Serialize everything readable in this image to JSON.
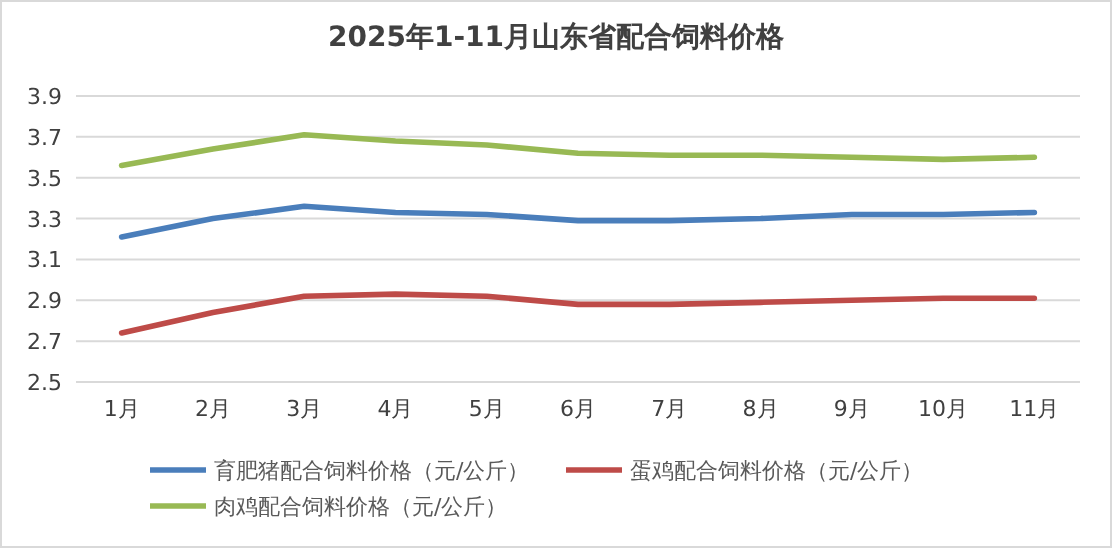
{
  "chart_data": {
    "type": "line",
    "title": "2025年1-11月山东省配合饲料价格",
    "categories": [
      "1月",
      "2月",
      "3月",
      "4月",
      "5月",
      "6月",
      "7月",
      "8月",
      "9月",
      "10月",
      "11月"
    ],
    "series": [
      {
        "name": "育肥猪配合饲料价格（元/公斤）",
        "color": "#4a7ebb",
        "values": [
          3.21,
          3.3,
          3.36,
          3.33,
          3.32,
          3.29,
          3.29,
          3.3,
          3.32,
          3.32,
          3.33
        ]
      },
      {
        "name": "蛋鸡配合饲料价格（元/公斤）",
        "color": "#be4b48",
        "values": [
          2.74,
          2.84,
          2.92,
          2.93,
          2.92,
          2.88,
          2.88,
          2.89,
          2.9,
          2.91,
          2.91
        ]
      },
      {
        "name": "肉鸡配合饲料价格（元/公斤）",
        "color": "#98b954",
        "values": [
          3.56,
          3.64,
          3.71,
          3.68,
          3.66,
          3.62,
          3.61,
          3.61,
          3.6,
          3.59,
          3.6
        ]
      }
    ],
    "ylim": [
      2.5,
      3.9
    ],
    "yticks": [
      {
        "value": 2.5,
        "label": "2.5"
      },
      {
        "value": 2.7,
        "label": "2.7"
      },
      {
        "value": 2.9,
        "label": "2.9"
      },
      {
        "value": 3.1,
        "label": "3.1"
      },
      {
        "value": 3.3,
        "label": "3.3"
      },
      {
        "value": 3.5,
        "label": "3.5"
      },
      {
        "value": 3.7,
        "label": "3.7"
      },
      {
        "value": 3.9,
        "label": "3.9"
      }
    ],
    "grid": "y",
    "legend": "bottom",
    "marker": "none",
    "line_style": "solid"
  }
}
